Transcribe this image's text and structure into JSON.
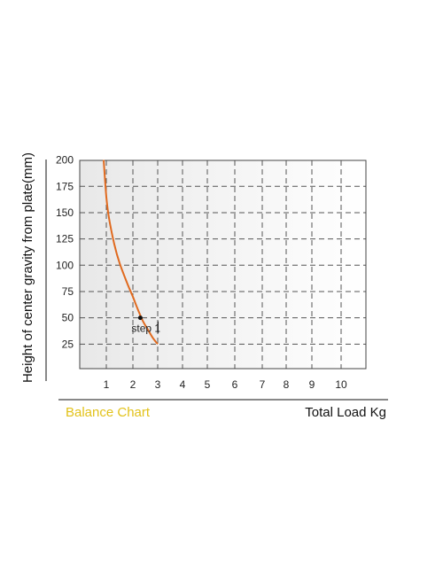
{
  "chart_data": {
    "type": "line",
    "ylabel": "Height of center gravity from plate(mm)",
    "xlabel": "Total Load Kg",
    "caption": "Balance Chart",
    "x_ticks": [
      "1",
      "2",
      "3",
      "4",
      "5",
      "6",
      "7",
      "8",
      "9",
      "10"
    ],
    "y_ticks": [
      "25",
      "50",
      "75",
      "100",
      "125",
      "150",
      "175",
      "200"
    ],
    "ylim": [
      0,
      200
    ],
    "grid": true,
    "series": [
      {
        "x": [
          0.9,
          1.0,
          1.1,
          1.3,
          1.5,
          1.8,
          2.0,
          2.2,
          2.4,
          2.6,
          2.8,
          3.0
        ],
        "y": [
          200,
          165,
          145,
          120,
          102,
          82,
          70,
          58,
          47,
          39,
          31,
          25
        ],
        "color": "#e06a1f"
      }
    ],
    "annotations": [
      {
        "text": "step 1",
        "x": 2.3,
        "y": 50
      }
    ]
  },
  "colors": {
    "caption": "#e2c21a",
    "curve": "#e06a1f",
    "grid": "#555555",
    "frame": "#444444"
  }
}
